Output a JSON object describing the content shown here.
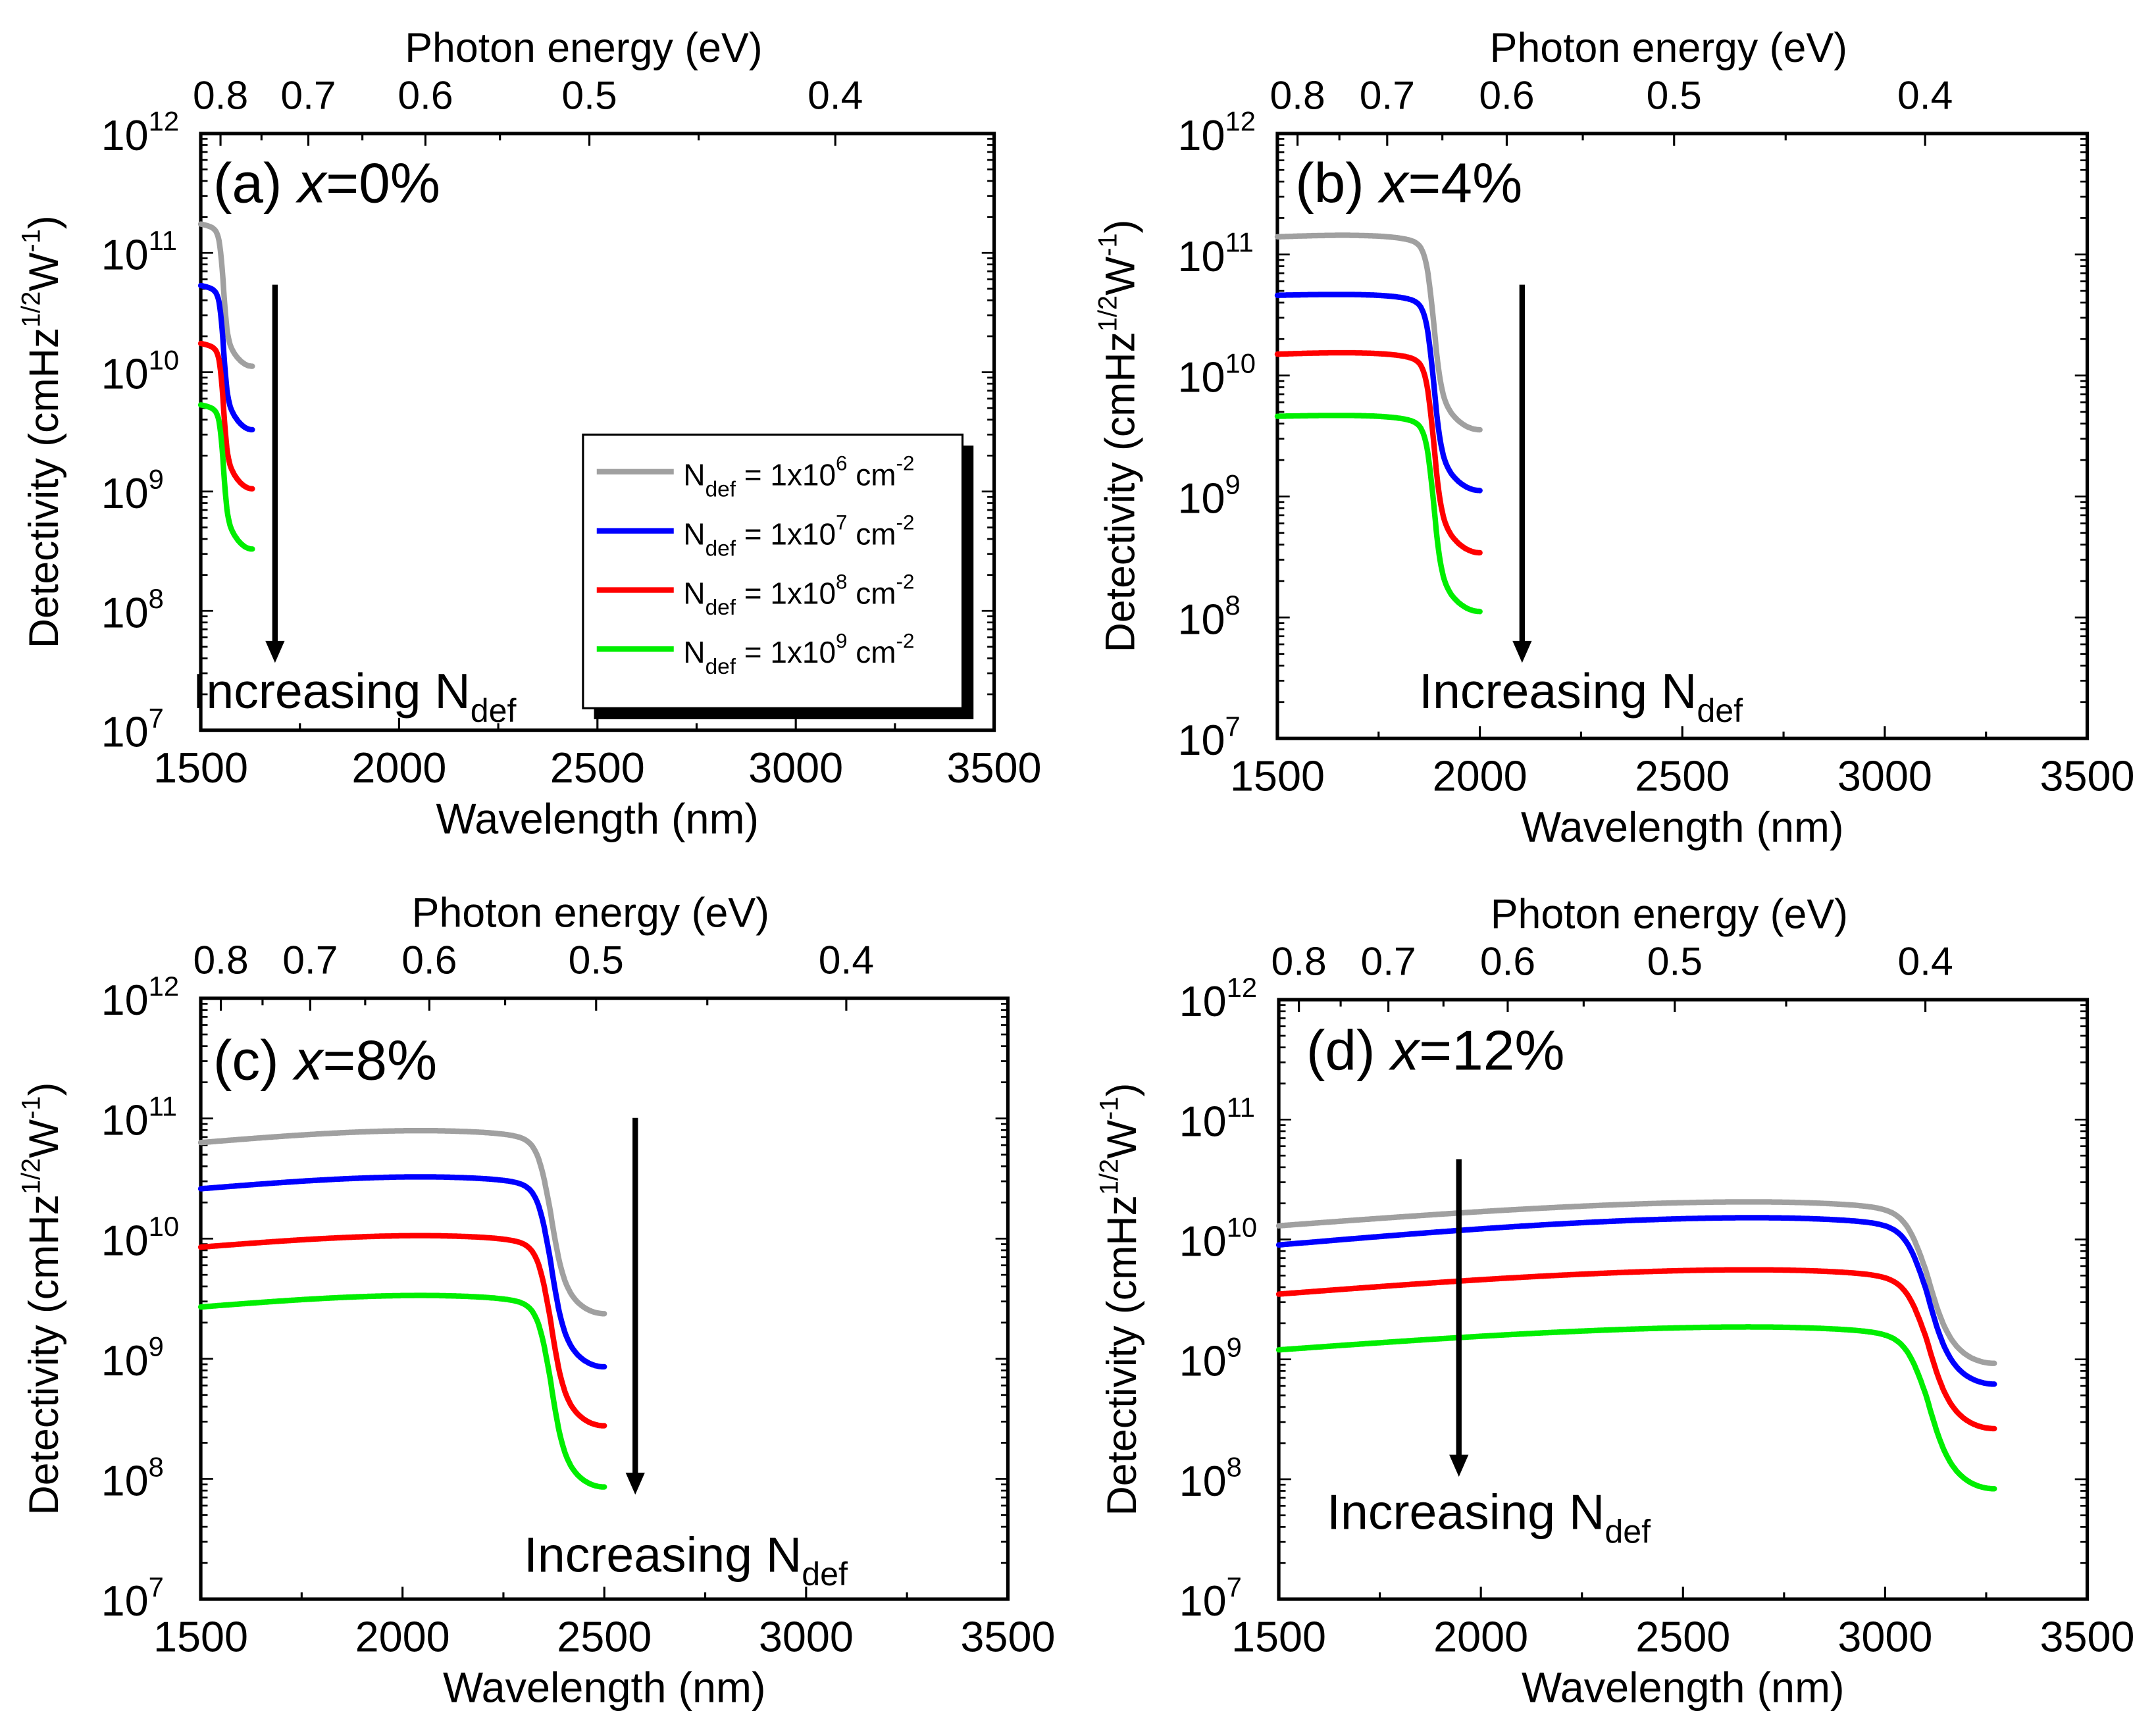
{
  "chart_data": [
    {
      "type": "line",
      "panel_label": "(a)",
      "composition_var": "x",
      "composition_value": "=0%",
      "xlabel": "Wavelength (nm)",
      "ylabel": "Detectivity (cmHz^1/2W^-1)",
      "top_xlabel": "Photon energy (eV)",
      "xlim": [
        1500,
        3500
      ],
      "ylim": [
        10000000.0,
        1000000000000.0
      ],
      "yscale": "log",
      "x_ticks": [
        1500,
        2000,
        2500,
        3000,
        3500
      ],
      "y_tick_exponents": [
        7,
        8,
        9,
        10,
        11,
        12
      ],
      "top_ticks_eV": [
        0.8,
        0.7,
        0.6,
        0.5,
        0.4
      ],
      "annotation": {
        "text": "Increasing N",
        "sub": "def"
      },
      "legend_shown": true,
      "peak_x": 1500,
      "edge_x": 1557,
      "end_x": 1630,
      "series": [
        {
          "name": "Ndef = 1x10^6 cm^-2",
          "color": "#a0a0a0",
          "start": 180000000000.0,
          "peak": 180000000000.0,
          "tail": 16000000000.0,
          "end": 8500000000.0
        },
        {
          "name": "Ndef = 1x10^7 cm^-2",
          "color": "#0000ff",
          "start": 55000000000.0,
          "peak": 55000000000.0,
          "tail": 5000000000.0,
          "end": 2500000000.0
        },
        {
          "name": "Ndef = 1x10^8 cm^-2",
          "color": "#ff0000",
          "start": 18000000000.0,
          "peak": 18000000000.0,
          "tail": 1600000000.0,
          "end": 800000000.0
        },
        {
          "name": "Ndef = 1x10^9 cm^-2",
          "color": "#00ee00",
          "start": 5500000000.0,
          "peak": 5500000000.0,
          "tail": 500000000.0,
          "end": 250000000.0
        }
      ]
    },
    {
      "type": "line",
      "panel_label": "(b)",
      "composition_var": "x",
      "composition_value": "=4%",
      "xlabel": "Wavelength (nm)",
      "ylabel": "Detectivity (cmHz^1/2W^-1)",
      "top_xlabel": "Photon energy (eV)",
      "xlim": [
        1500,
        3500
      ],
      "ylim": [
        10000000.0,
        1000000000000.0
      ],
      "yscale": "log",
      "x_ticks": [
        1500,
        2000,
        2500,
        3000,
        3500
      ],
      "y_tick_exponents": [
        7,
        8,
        9,
        10,
        11,
        12
      ],
      "top_ticks_eV": [
        0.8,
        0.7,
        0.6,
        0.5,
        0.4
      ],
      "annotation": {
        "text": "Increasing N",
        "sub": "def"
      },
      "legend_shown": false,
      "peak_x": 1700,
      "edge_x": 1885,
      "end_x": 2000,
      "series": [
        {
          "name": "Ndef = 1x10^6 cm^-2",
          "color": "#a0a0a0",
          "start": 140000000000.0,
          "peak": 145000000000.0,
          "tail": 6000000000.0,
          "end": 2700000000.0
        },
        {
          "name": "Ndef = 1x10^7 cm^-2",
          "color": "#0000ff",
          "start": 46000000000.0,
          "peak": 47000000000.0,
          "tail": 1900000000.0,
          "end": 850000000.0
        },
        {
          "name": "Ndef = 1x10^8 cm^-2",
          "color": "#ff0000",
          "start": 15000000000.0,
          "peak": 15500000000.0,
          "tail": 600000000.0,
          "end": 260000000.0
        },
        {
          "name": "Ndef = 1x10^9 cm^-2",
          "color": "#00ee00",
          "start": 4600000000.0,
          "peak": 4700000000.0,
          "tail": 190000000.0,
          "end": 85000000.0
        }
      ]
    },
    {
      "type": "line",
      "panel_label": "(c)",
      "composition_var": "x",
      "composition_value": "=8%",
      "xlabel": "Wavelength (nm)",
      "ylabel": "Detectivity (cmHz^1/2W^-1)",
      "top_xlabel": "Photon energy (eV)",
      "xlim": [
        1500,
        3500
      ],
      "ylim": [
        10000000.0,
        1000000000000.0
      ],
      "yscale": "log",
      "x_ticks": [
        1500,
        2000,
        2500,
        3000,
        3500
      ],
      "y_tick_exponents": [
        7,
        8,
        9,
        10,
        11,
        12
      ],
      "top_ticks_eV": [
        0.8,
        0.7,
        0.6,
        0.5,
        0.4
      ],
      "annotation": {
        "text": "Increasing N",
        "sub": "def"
      },
      "legend_shown": false,
      "peak_x": 2100,
      "edge_x": 2365,
      "end_x": 2500,
      "series": [
        {
          "name": "Ndef = 1x10^6 cm^-2",
          "color": "#a0a0a0",
          "start": 63000000000.0,
          "peak": 80000000000.0,
          "tail": 4000000000.0,
          "end": 1800000000.0
        },
        {
          "name": "Ndef = 1x10^7 cm^-2",
          "color": "#0000ff",
          "start": 26000000000.0,
          "peak": 33000000000.0,
          "tail": 1500000000.0,
          "end": 650000000.0
        },
        {
          "name": "Ndef = 1x10^8 cm^-2",
          "color": "#ff0000",
          "start": 8500000000.0,
          "peak": 10700000000.0,
          "tail": 480000000.0,
          "end": 210000000.0
        },
        {
          "name": "Ndef = 1x10^9 cm^-2",
          "color": "#00ee00",
          "start": 2700000000.0,
          "peak": 3400000000.0,
          "tail": 150000000.0,
          "end": 65000000.0
        }
      ]
    },
    {
      "type": "line",
      "panel_label": "(d)",
      "composition_var": "x",
      "composition_value": "=12%",
      "xlabel": "Wavelength (nm)",
      "ylabel": "Detectivity (cmHz^1/2W^-1)",
      "top_xlabel": "Photon energy (eV)",
      "xlim": [
        1500,
        3500
      ],
      "ylim": [
        10000000.0,
        1000000000000.0
      ],
      "yscale": "log",
      "x_ticks": [
        1500,
        2000,
        2500,
        3000,
        3500
      ],
      "y_tick_exponents": [
        7,
        8,
        9,
        10,
        11,
        12
      ],
      "top_ticks_eV": [
        0.8,
        0.7,
        0.6,
        0.5,
        0.4
      ],
      "annotation": {
        "text": "Increasing N",
        "sub": "def"
      },
      "legend_shown": false,
      "peak_x": 2800,
      "edge_x": 3100,
      "end_x": 3270,
      "series": [
        {
          "name": "Ndef = 1x10^6 cm^-2",
          "color": "#a0a0a0",
          "start": 13000000000.0,
          "peak": 21000000000.0,
          "tail": 1500000000.0,
          "end": 700000000.0
        },
        {
          "name": "Ndef = 1x10^7 cm^-2",
          "color": "#0000ff",
          "start": 9000000000.0,
          "peak": 15500000000.0,
          "tail": 1000000000.0,
          "end": 470000000.0
        },
        {
          "name": "Ndef = 1x10^8 cm^-2",
          "color": "#ff0000",
          "start": 3500000000.0,
          "peak": 5700000000.0,
          "tail": 430000000.0,
          "end": 200000000.0
        },
        {
          "name": "Ndef = 1x10^9 cm^-2",
          "color": "#00ee00",
          "start": 1200000000.0,
          "peak": 1900000000.0,
          "tail": 140000000.0,
          "end": 63000000.0
        }
      ]
    }
  ],
  "legend": {
    "entries": [
      {
        "base": "N",
        "sub": "def",
        "mid": " = 1x10",
        "exp": "6",
        "unit": " cm",
        "unit_exp": "-2",
        "color": "#a0a0a0"
      },
      {
        "base": "N",
        "sub": "def",
        "mid": " = 1x10",
        "exp": "7",
        "unit": " cm",
        "unit_exp": "-2",
        "color": "#0000ff"
      },
      {
        "base": "N",
        "sub": "def",
        "mid": " = 1x10",
        "exp": "8",
        "unit": " cm",
        "unit_exp": "-2",
        "color": "#ff0000"
      },
      {
        "base": "N",
        "sub": "def",
        "mid": " = 1x10",
        "exp": "9",
        "unit": " cm",
        "unit_exp": "-2",
        "color": "#00ee00"
      }
    ]
  },
  "ylabel_parts": {
    "pre": "Detectivity (cmHz",
    "exp1": "1/2",
    "mid": "W",
    "exp2": "-1",
    "post": ")"
  },
  "tick_base": "10"
}
